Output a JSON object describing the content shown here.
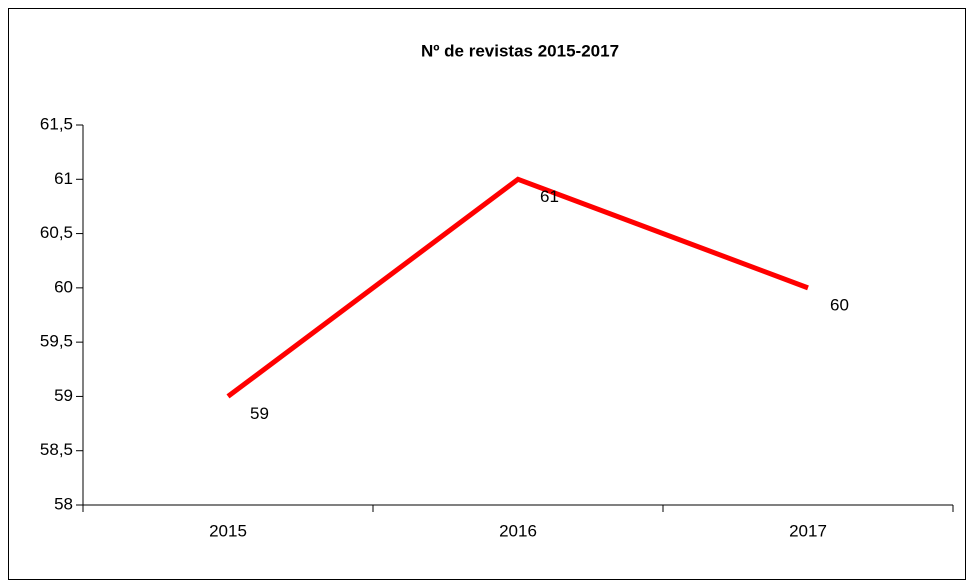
{
  "chart_data": {
    "type": "line",
    "title": "Nº de revistas 2015-2017",
    "categories": [
      "2015",
      "2016",
      "2017"
    ],
    "series": [
      {
        "name": "Nº de revistas",
        "color": "#ff0000",
        "values": [
          59,
          61,
          60
        ]
      }
    ],
    "ylim": [
      58,
      61.5
    ],
    "yticks": [
      58,
      {
        "value": 58.5,
        "label": "58,5"
      },
      59,
      {
        "value": 59.5,
        "label": "59,5"
      },
      60,
      {
        "value": 60.5,
        "label": "60,5"
      },
      61,
      {
        "value": 61.5,
        "label": "61,5"
      }
    ],
    "grid": false,
    "legend": false
  }
}
